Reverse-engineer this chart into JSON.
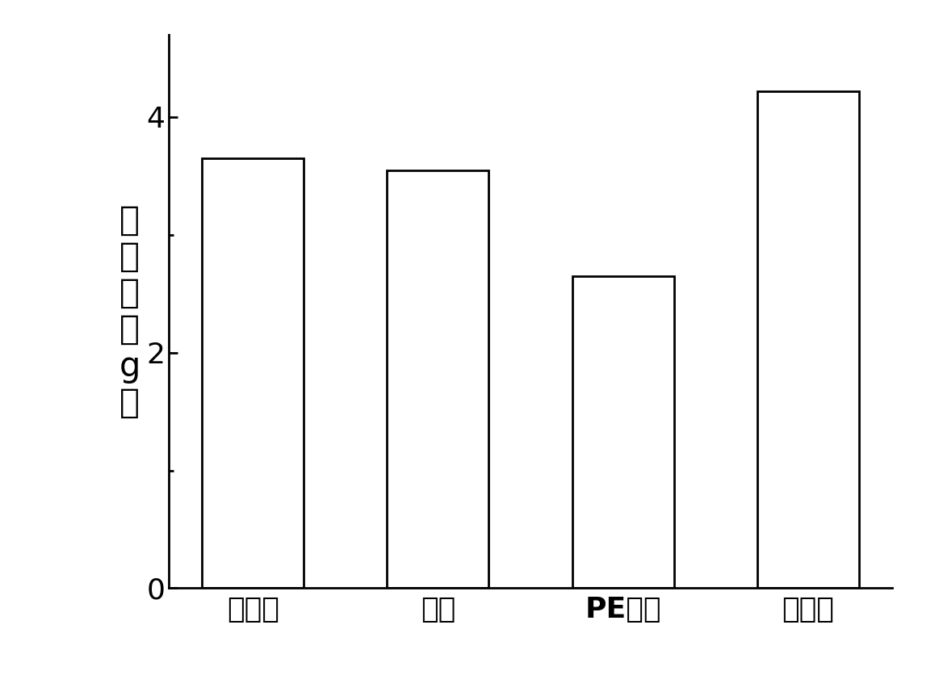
{
  "categories": [
    "活性炭",
    "确胶",
    "PE隔膜",
    "无纺布"
  ],
  "values": [
    3.65,
    3.55,
    2.65,
    4.22
  ],
  "bar_color": "#ffffff",
  "bar_edgecolor": "#000000",
  "ylabel": "吸附量（g）",
  "ylim": [
    0,
    4.7
  ],
  "yticks": [
    0,
    2,
    4
  ],
  "bar_width": 0.55,
  "background_color": "#ffffff",
  "bold_category_index": 2,
  "ylabel_fontsize": 30,
  "tick_fontsize": 26,
  "linewidth": 2.0
}
